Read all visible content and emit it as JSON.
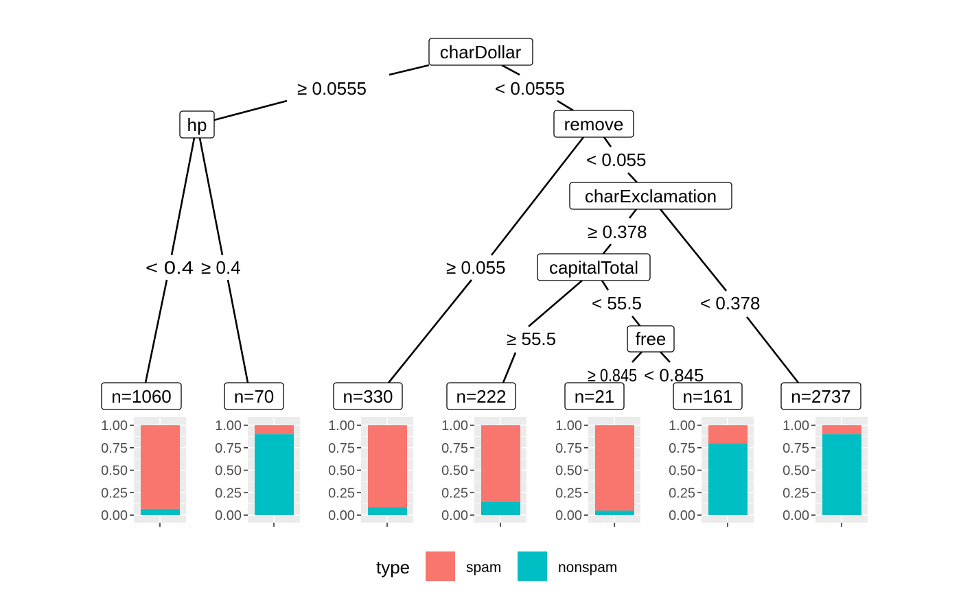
{
  "colors": {
    "spam": "#F8766D",
    "nonspam": "#00BFC4",
    "panel_bg": "#EBEBEB",
    "grid": "#FFFFFF"
  },
  "nodes": {
    "root": "charDollar",
    "hp": "hp",
    "remove": "remove",
    "charExclamation": "charExclamation",
    "capitalTotal": "capitalTotal",
    "free": "free"
  },
  "edges": {
    "root_left": "≥  0.0555",
    "root_right": "<  0.0555",
    "hp_left": "<  0.4",
    "hp_right": "≥  0.4",
    "remove_left": "≥  0.055",
    "remove_right": "<  0.055",
    "excl_left": "≥  0.378",
    "excl_right": "<  0.378",
    "cap_left": "≥  55.5",
    "cap_right": "<  55.5",
    "free_left": "≥  0.845",
    "free_right": "<  0.845"
  },
  "leaves": [
    {
      "label": "n=1060",
      "spam": 0.93
    },
    {
      "label": "n=70",
      "spam": 0.1
    },
    {
      "label": "n=330",
      "spam": 0.91
    },
    {
      "label": "n=222",
      "spam": 0.85
    },
    {
      "label": "n=21",
      "spam": 0.95
    },
    {
      "label": "n=161",
      "spam": 0.2
    },
    {
      "label": "n=2737",
      "spam": 0.1
    }
  ],
  "axis_ticks": [
    "0.00",
    "0.25",
    "0.50",
    "0.75",
    "1.00"
  ],
  "legend": {
    "title": "type",
    "items": [
      "spam",
      "nonspam"
    ]
  }
}
